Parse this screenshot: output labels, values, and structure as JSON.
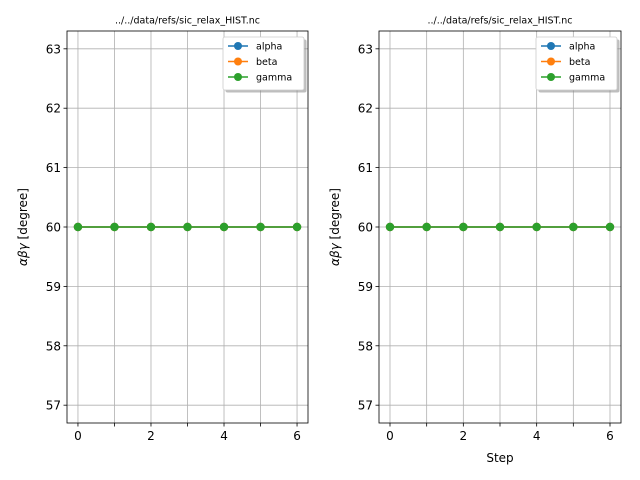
{
  "chart_data": [
    {
      "type": "line",
      "title": "../../data/refs/sic_relax_HIST.nc",
      "xlabel": "",
      "ylabel_symbols": "αβγ",
      "ylabel_unit": "[degree]",
      "xlim": [
        -0.3,
        6.3
      ],
      "ylim": [
        56.7,
        63.3
      ],
      "xticks": [
        0,
        1,
        2,
        3,
        4,
        5,
        6
      ],
      "xtick_labels": [
        "0",
        "2",
        "4",
        "6"
      ],
      "yticks": [
        57,
        58,
        59,
        60,
        61,
        62,
        63
      ],
      "grid": true,
      "legend_position": "top-right",
      "x": [
        0,
        1,
        2,
        3,
        4,
        5,
        6
      ],
      "series": [
        {
          "name": "alpha",
          "color": "#1f77b4",
          "values": [
            60,
            60,
            60,
            60,
            60,
            60,
            60
          ]
        },
        {
          "name": "beta",
          "color": "#ff7f0e",
          "values": [
            60,
            60,
            60,
            60,
            60,
            60,
            60
          ]
        },
        {
          "name": "gamma",
          "color": "#2ca02c",
          "values": [
            60,
            60,
            60,
            60,
            60,
            60,
            60
          ]
        }
      ]
    },
    {
      "type": "line",
      "title": "../../data/refs/sic_relax_HIST.nc",
      "xlabel": "Step",
      "ylabel_symbols": "αβγ",
      "ylabel_unit": "[degree]",
      "xlim": [
        -0.3,
        6.3
      ],
      "ylim": [
        56.7,
        63.3
      ],
      "xticks": [
        0,
        1,
        2,
        3,
        4,
        5,
        6
      ],
      "xtick_labels": [
        "0",
        "2",
        "4",
        "6"
      ],
      "yticks": [
        57,
        58,
        59,
        60,
        61,
        62,
        63
      ],
      "grid": true,
      "legend_position": "top-right",
      "x": [
        0,
        1,
        2,
        3,
        4,
        5,
        6
      ],
      "series": [
        {
          "name": "alpha",
          "color": "#1f77b4",
          "values": [
            60,
            60,
            60,
            60,
            60,
            60,
            60
          ]
        },
        {
          "name": "beta",
          "color": "#ff7f0e",
          "values": [
            60,
            60,
            60,
            60,
            60,
            60,
            60
          ]
        },
        {
          "name": "gamma",
          "color": "#2ca02c",
          "values": [
            60,
            60,
            60,
            60,
            60,
            60,
            60
          ]
        }
      ]
    }
  ]
}
